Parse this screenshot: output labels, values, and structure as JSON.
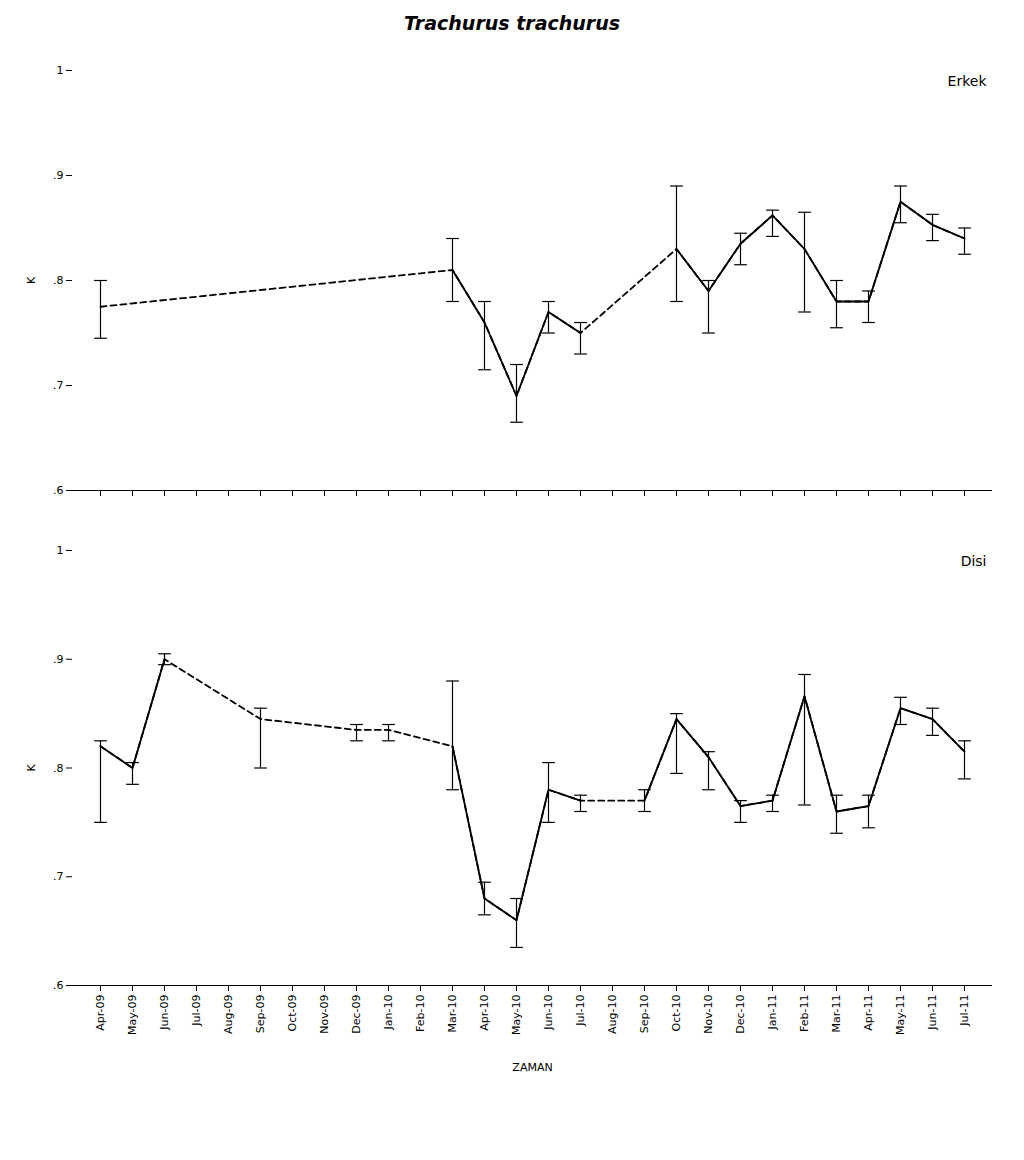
{
  "chart_data": [
    {
      "type": "line",
      "title": "Trachurus trachurus",
      "ylabel": "K",
      "categories": [
        "Apr-09",
        "May-09",
        "Jun-09",
        "Jul-09",
        "Aug-09",
        "Sep-09",
        "Oct-09",
        "Nov-09",
        "Dec-09",
        "Jan-10",
        "Feb-10",
        "Mar-10",
        "Apr-10",
        "May-10",
        "Jun-10",
        "Jul-10",
        "Aug-10",
        "Sep-10",
        "Oct-10",
        "Nov-10",
        "Dec-10",
        "Jan-11",
        "Feb-11",
        "Mar-11",
        "Apr-11",
        "May-11",
        "Jun-11",
        "Jul-11"
      ],
      "tick_labels": "y",
      "ylim": [
        0.6,
        1.0
      ],
      "yticks": [
        {
          "value": 0.6,
          "label": ".6"
        },
        {
          "value": 0.7,
          "label": ".7"
        },
        {
          "value": 0.8,
          "label": ".8"
        },
        {
          "value": 0.9,
          "label": ".9"
        },
        1
      ],
      "annotations": [
        "Erkek"
      ],
      "series": [
        {
          "color": "black",
          "line_style": "dashed",
          "values": [
            0.775,
            null,
            null,
            null,
            null,
            null,
            null,
            null,
            null,
            null,
            null,
            0.81,
            0.76,
            0.69,
            0.77,
            0.75,
            null,
            null,
            0.83,
            0.79,
            0.835,
            0.862,
            0.83,
            0.78,
            0.78,
            0.875,
            0.853,
            0.84
          ],
          "err_low": [
            0.03,
            null,
            null,
            null,
            null,
            null,
            null,
            null,
            null,
            null,
            null,
            0.03,
            0.045,
            0.025,
            0.02,
            0.02,
            null,
            null,
            0.05,
            0.04,
            0.02,
            0.02,
            0.06,
            0.025,
            0.02,
            0.02,
            0.015,
            0.015
          ],
          "err_high": [
            0.025,
            null,
            null,
            null,
            null,
            null,
            null,
            null,
            null,
            null,
            null,
            0.03,
            0.02,
            0.03,
            0.01,
            0.01,
            null,
            null,
            0.06,
            0.01,
            0.01,
            0.005,
            0.035,
            0.02,
            0.01,
            0.015,
            0.01,
            0.01
          ]
        },
        {
          "color": "black",
          "line_style": "solid",
          "values": [
            null,
            null,
            null,
            null,
            null,
            null,
            null,
            null,
            null,
            null,
            null,
            0.81,
            0.76,
            0.69,
            0.77,
            0.75,
            null,
            null,
            0.83,
            0.79,
            0.835,
            0.862,
            0.83,
            0.78,
            0.78,
            0.875,
            0.853,
            0.84
          ]
        }
      ]
    },
    {
      "type": "line",
      "xlabel": "ZAMAN",
      "ylabel": "K",
      "categories": [
        "Apr-09",
        "May-09",
        "Jun-09",
        "Jul-09",
        "Aug-09",
        "Sep-09",
        "Oct-09",
        "Nov-09",
        "Dec-09",
        "Jan-10",
        "Feb-10",
        "Mar-10",
        "Apr-10",
        "May-10",
        "Jun-10",
        "Jul-10",
        "Aug-10",
        "Sep-10",
        "Oct-10",
        "Nov-10",
        "Dec-10",
        "Jan-11",
        "Feb-11",
        "Mar-11",
        "Apr-11",
        "May-11",
        "Jun-11",
        "Jul-11"
      ],
      "ylim": [
        0.6,
        1.0
      ],
      "yticks": [
        {
          "value": 0.6,
          "label": ".6"
        },
        {
          "value": 0.7,
          "label": ".7"
        },
        {
          "value": 0.8,
          "label": ".8"
        },
        {
          "value": 0.9,
          "label": ".9"
        },
        1
      ],
      "annotations": [
        "Disi"
      ],
      "series": [
        {
          "color": "black",
          "line_style": "dashed",
          "values": [
            0.82,
            0.8,
            0.9,
            null,
            null,
            0.845,
            null,
            null,
            0.835,
            0.835,
            null,
            0.82,
            0.68,
            0.66,
            0.78,
            0.77,
            null,
            0.77,
            0.845,
            0.81,
            0.765,
            0.77,
            0.866,
            0.76,
            0.765,
            0.855,
            0.845,
            0.815
          ],
          "err_low": [
            0.07,
            0.015,
            0.005,
            null,
            null,
            0.045,
            null,
            null,
            0.01,
            0.01,
            null,
            0.04,
            0.015,
            0.025,
            0.03,
            0.01,
            null,
            0.01,
            0.05,
            0.03,
            0.015,
            0.01,
            0.1,
            0.02,
            0.02,
            0.015,
            0.015,
            0.025
          ],
          "err_high": [
            0.005,
            0.005,
            0.005,
            null,
            null,
            0.01,
            null,
            null,
            0.005,
            0.005,
            null,
            0.06,
            0.015,
            0.02,
            0.025,
            0.005,
            null,
            0.01,
            0.005,
            0.005,
            0.005,
            0.005,
            0.02,
            0.015,
            0.01,
            0.01,
            0.01,
            0.01
          ]
        },
        {
          "color": "black",
          "line_style": "solid",
          "values": [
            0.82,
            0.8,
            0.9,
            null,
            null,
            null,
            null,
            null,
            null,
            null,
            null,
            0.82,
            0.68,
            0.66,
            0.78,
            0.77,
            null,
            0.77,
            0.845,
            0.81,
            0.765,
            0.77,
            0.866,
            0.76,
            0.765,
            0.855,
            0.845,
            0.815
          ]
        }
      ]
    }
  ]
}
